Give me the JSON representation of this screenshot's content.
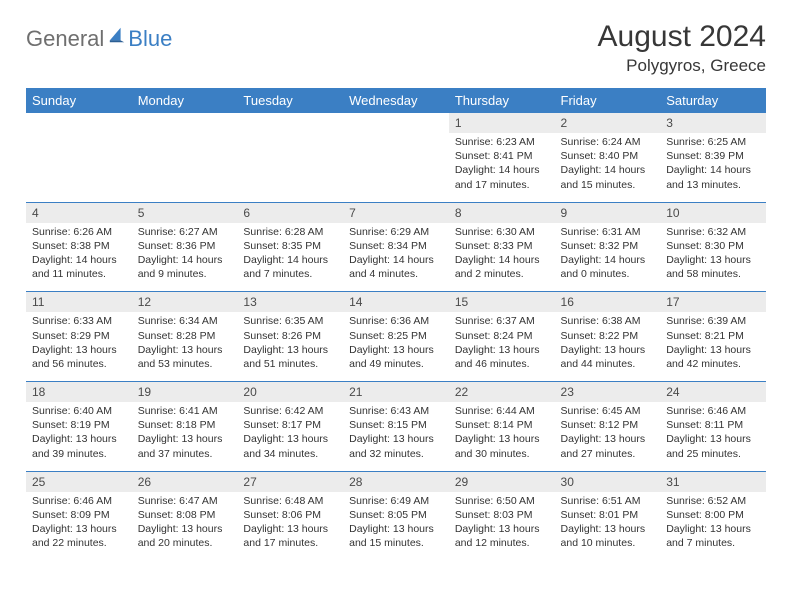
{
  "brand": {
    "part1": "General",
    "part2": "Blue"
  },
  "title": "August 2024",
  "location": "Polygyros, Greece",
  "colors": {
    "header_bg": "#3b7fc4",
    "header_text": "#ffffff",
    "daynum_bg": "#ececec",
    "text": "#333333",
    "logo_gray": "#6f6f6f",
    "logo_blue": "#3b7fc4"
  },
  "day_headers": [
    "Sunday",
    "Monday",
    "Tuesday",
    "Wednesday",
    "Thursday",
    "Friday",
    "Saturday"
  ],
  "weeks": [
    {
      "nums": [
        "",
        "",
        "",
        "",
        "1",
        "2",
        "3"
      ],
      "cells": [
        {
          "empty": true
        },
        {
          "empty": true
        },
        {
          "empty": true
        },
        {
          "empty": true
        },
        {
          "sunrise": "Sunrise: 6:23 AM",
          "sunset": "Sunset: 8:41 PM",
          "day1": "Daylight: 14 hours",
          "day2": "and 17 minutes."
        },
        {
          "sunrise": "Sunrise: 6:24 AM",
          "sunset": "Sunset: 8:40 PM",
          "day1": "Daylight: 14 hours",
          "day2": "and 15 minutes."
        },
        {
          "sunrise": "Sunrise: 6:25 AM",
          "sunset": "Sunset: 8:39 PM",
          "day1": "Daylight: 14 hours",
          "day2": "and 13 minutes."
        }
      ]
    },
    {
      "nums": [
        "4",
        "5",
        "6",
        "7",
        "8",
        "9",
        "10"
      ],
      "cells": [
        {
          "sunrise": "Sunrise: 6:26 AM",
          "sunset": "Sunset: 8:38 PM",
          "day1": "Daylight: 14 hours",
          "day2": "and 11 minutes."
        },
        {
          "sunrise": "Sunrise: 6:27 AM",
          "sunset": "Sunset: 8:36 PM",
          "day1": "Daylight: 14 hours",
          "day2": "and 9 minutes."
        },
        {
          "sunrise": "Sunrise: 6:28 AM",
          "sunset": "Sunset: 8:35 PM",
          "day1": "Daylight: 14 hours",
          "day2": "and 7 minutes."
        },
        {
          "sunrise": "Sunrise: 6:29 AM",
          "sunset": "Sunset: 8:34 PM",
          "day1": "Daylight: 14 hours",
          "day2": "and 4 minutes."
        },
        {
          "sunrise": "Sunrise: 6:30 AM",
          "sunset": "Sunset: 8:33 PM",
          "day1": "Daylight: 14 hours",
          "day2": "and 2 minutes."
        },
        {
          "sunrise": "Sunrise: 6:31 AM",
          "sunset": "Sunset: 8:32 PM",
          "day1": "Daylight: 14 hours",
          "day2": "and 0 minutes."
        },
        {
          "sunrise": "Sunrise: 6:32 AM",
          "sunset": "Sunset: 8:30 PM",
          "day1": "Daylight: 13 hours",
          "day2": "and 58 minutes."
        }
      ]
    },
    {
      "nums": [
        "11",
        "12",
        "13",
        "14",
        "15",
        "16",
        "17"
      ],
      "cells": [
        {
          "sunrise": "Sunrise: 6:33 AM",
          "sunset": "Sunset: 8:29 PM",
          "day1": "Daylight: 13 hours",
          "day2": "and 56 minutes."
        },
        {
          "sunrise": "Sunrise: 6:34 AM",
          "sunset": "Sunset: 8:28 PM",
          "day1": "Daylight: 13 hours",
          "day2": "and 53 minutes."
        },
        {
          "sunrise": "Sunrise: 6:35 AM",
          "sunset": "Sunset: 8:26 PM",
          "day1": "Daylight: 13 hours",
          "day2": "and 51 minutes."
        },
        {
          "sunrise": "Sunrise: 6:36 AM",
          "sunset": "Sunset: 8:25 PM",
          "day1": "Daylight: 13 hours",
          "day2": "and 49 minutes."
        },
        {
          "sunrise": "Sunrise: 6:37 AM",
          "sunset": "Sunset: 8:24 PM",
          "day1": "Daylight: 13 hours",
          "day2": "and 46 minutes."
        },
        {
          "sunrise": "Sunrise: 6:38 AM",
          "sunset": "Sunset: 8:22 PM",
          "day1": "Daylight: 13 hours",
          "day2": "and 44 minutes."
        },
        {
          "sunrise": "Sunrise: 6:39 AM",
          "sunset": "Sunset: 8:21 PM",
          "day1": "Daylight: 13 hours",
          "day2": "and 42 minutes."
        }
      ]
    },
    {
      "nums": [
        "18",
        "19",
        "20",
        "21",
        "22",
        "23",
        "24"
      ],
      "cells": [
        {
          "sunrise": "Sunrise: 6:40 AM",
          "sunset": "Sunset: 8:19 PM",
          "day1": "Daylight: 13 hours",
          "day2": "and 39 minutes."
        },
        {
          "sunrise": "Sunrise: 6:41 AM",
          "sunset": "Sunset: 8:18 PM",
          "day1": "Daylight: 13 hours",
          "day2": "and 37 minutes."
        },
        {
          "sunrise": "Sunrise: 6:42 AM",
          "sunset": "Sunset: 8:17 PM",
          "day1": "Daylight: 13 hours",
          "day2": "and 34 minutes."
        },
        {
          "sunrise": "Sunrise: 6:43 AM",
          "sunset": "Sunset: 8:15 PM",
          "day1": "Daylight: 13 hours",
          "day2": "and 32 minutes."
        },
        {
          "sunrise": "Sunrise: 6:44 AM",
          "sunset": "Sunset: 8:14 PM",
          "day1": "Daylight: 13 hours",
          "day2": "and 30 minutes."
        },
        {
          "sunrise": "Sunrise: 6:45 AM",
          "sunset": "Sunset: 8:12 PM",
          "day1": "Daylight: 13 hours",
          "day2": "and 27 minutes."
        },
        {
          "sunrise": "Sunrise: 6:46 AM",
          "sunset": "Sunset: 8:11 PM",
          "day1": "Daylight: 13 hours",
          "day2": "and 25 minutes."
        }
      ]
    },
    {
      "nums": [
        "25",
        "26",
        "27",
        "28",
        "29",
        "30",
        "31"
      ],
      "cells": [
        {
          "sunrise": "Sunrise: 6:46 AM",
          "sunset": "Sunset: 8:09 PM",
          "day1": "Daylight: 13 hours",
          "day2": "and 22 minutes."
        },
        {
          "sunrise": "Sunrise: 6:47 AM",
          "sunset": "Sunset: 8:08 PM",
          "day1": "Daylight: 13 hours",
          "day2": "and 20 minutes."
        },
        {
          "sunrise": "Sunrise: 6:48 AM",
          "sunset": "Sunset: 8:06 PM",
          "day1": "Daylight: 13 hours",
          "day2": "and 17 minutes."
        },
        {
          "sunrise": "Sunrise: 6:49 AM",
          "sunset": "Sunset: 8:05 PM",
          "day1": "Daylight: 13 hours",
          "day2": "and 15 minutes."
        },
        {
          "sunrise": "Sunrise: 6:50 AM",
          "sunset": "Sunset: 8:03 PM",
          "day1": "Daylight: 13 hours",
          "day2": "and 12 minutes."
        },
        {
          "sunrise": "Sunrise: 6:51 AM",
          "sunset": "Sunset: 8:01 PM",
          "day1": "Daylight: 13 hours",
          "day2": "and 10 minutes."
        },
        {
          "sunrise": "Sunrise: 6:52 AM",
          "sunset": "Sunset: 8:00 PM",
          "day1": "Daylight: 13 hours",
          "day2": "and 7 minutes."
        }
      ]
    }
  ]
}
